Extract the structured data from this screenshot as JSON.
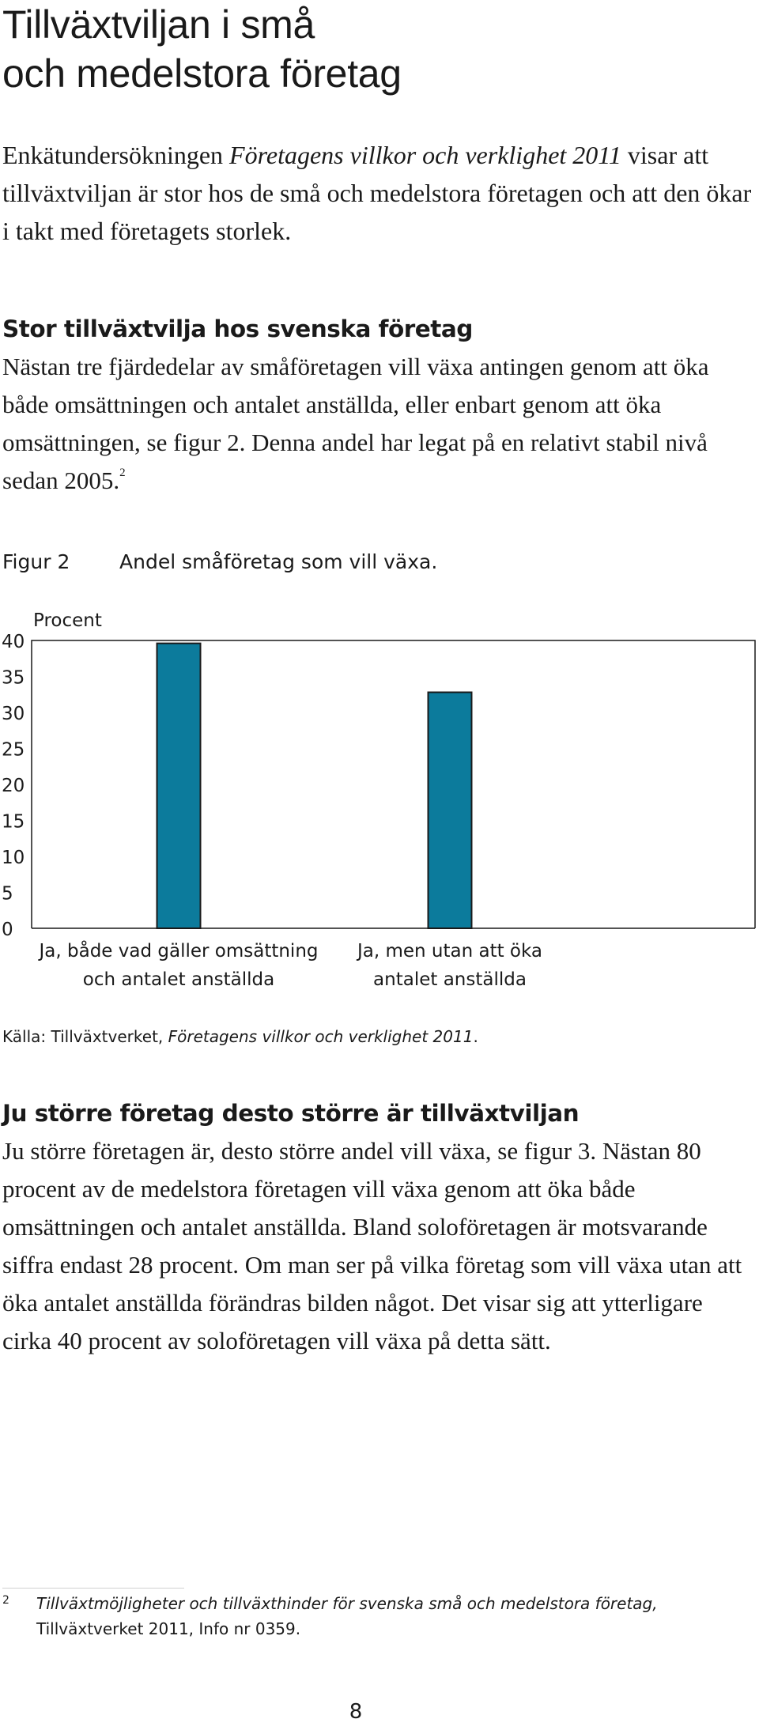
{
  "title": {
    "line1": "Tillväxtviljan i små",
    "line2": "och medelstora företag"
  },
  "intro": {
    "before": "Enkätundersökningen ",
    "italic": "Företagens villkor och verklighet 2011",
    "after": " visar att tillväxtviljan är stor hos de små och medelstora företagen och att den ökar i takt med företagets storlek."
  },
  "section1": {
    "heading": "Stor tillväxtvilja hos svenska företag",
    "text": "Nästan tre fjärdedelar av småföretagen vill växa antingen genom att öka både omsättningen och antalet anställda, eller enbart genom att öka omsättningen, se figur 2. Denna andel har legat på en relativt stabil nivå sedan 2005.",
    "footnote_ref": "2"
  },
  "figure": {
    "label": "Figur 2",
    "title": "Andel småföretag som vill växa.",
    "source_prefix": "Källa: Tillväxtverket, ",
    "source_italic": "Företagens villkor och verklighet 2011",
    "source_suffix": "."
  },
  "chart_data": {
    "type": "bar",
    "title": "Andel småföretag som vill växa.",
    "ylabel": "Procent",
    "xlabel": "",
    "ylim": [
      0,
      40
    ],
    "yticks": [
      0,
      5,
      10,
      15,
      20,
      25,
      30,
      35,
      40
    ],
    "categories": [
      [
        "Ja, både vad gäller omsättning",
        "och antalet anställda"
      ],
      [
        "Ja, men utan att öka",
        "antalet anställda"
      ]
    ],
    "values": [
      39.6,
      32.8
    ],
    "bar_color": "#0c7b9c",
    "grid": false
  },
  "section2": {
    "heading": "Ju större företag desto större är tillväxtviljan",
    "text": "Ju större företagen är, desto större andel vill växa, se figur 3. Nästan 80 procent av de medelstora företagen vill växa genom att öka både omsättningen och antalet anställda. Bland soloföretagen är motsvarande siffra endast 28 procent. Om man ser på vilka företag som vill växa utan att öka antalet anställda förändras bilden något. Det visar sig att ytterligare cirka 40 procent av soloföretagen vill växa på detta sätt."
  },
  "footnote": {
    "number": "2",
    "italic": "Tillväxtmöjligheter och tillväxthinder för svenska små och medelstora företag,",
    "rest": "Tillväxtverket 2011, Info nr 0359."
  },
  "page_number": "8"
}
